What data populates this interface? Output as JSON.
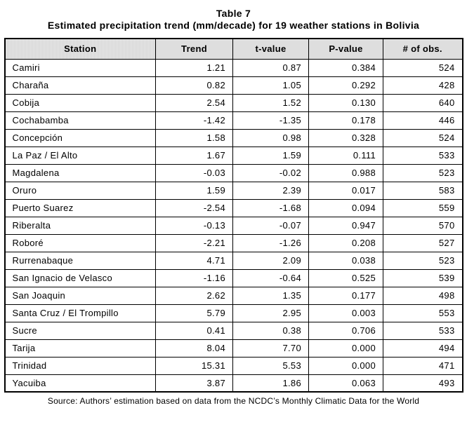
{
  "title": "Table 7",
  "subtitle": "Estimated precipitation trend (mm/decade) for 19 weather stations in Bolivia",
  "table": {
    "columns": [
      "Station",
      "Trend",
      "t-value",
      "P-value",
      "# of obs."
    ],
    "rows": [
      [
        "Camiri",
        "1.21",
        "0.87",
        "0.384",
        "524"
      ],
      [
        "Charaña",
        "0.82",
        "1.05",
        "0.292",
        "428"
      ],
      [
        "Cobija",
        "2.54",
        "1.52",
        "0.130",
        "640"
      ],
      [
        "Cochabamba",
        "-1.42",
        "-1.35",
        "0.178",
        "446"
      ],
      [
        "Concepción",
        "1.58",
        "0.98",
        "0.328",
        "524"
      ],
      [
        "La Paz / El Alto",
        "1.67",
        "1.59",
        "0.111",
        "533"
      ],
      [
        "Magdalena",
        "-0.03",
        "-0.02",
        "0.988",
        "523"
      ],
      [
        "Oruro",
        "1.59",
        "2.39",
        "0.017",
        "583"
      ],
      [
        "Puerto Suarez",
        "-2.54",
        "-1.68",
        "0.094",
        "559"
      ],
      [
        "Riberalta",
        "-0.13",
        "-0.07",
        "0.947",
        "570"
      ],
      [
        "Roboré",
        "-2.21",
        "-1.26",
        "0.208",
        "527"
      ],
      [
        "Rurrenabaque",
        "4.71",
        "2.09",
        "0.038",
        "523"
      ],
      [
        "San Ignacio de Velasco",
        "-1.16",
        "-0.64",
        "0.525",
        "539"
      ],
      [
        "San Joaquin",
        "2.62",
        "1.35",
        "0.177",
        "498"
      ],
      [
        "Santa Cruz / El Trompillo",
        "5.79",
        "2.95",
        "0.003",
        "553"
      ],
      [
        "Sucre",
        "0.41",
        "0.38",
        "0.706",
        "533"
      ],
      [
        "Tarija",
        "8.04",
        "7.70",
        "0.000",
        "494"
      ],
      [
        "Trinidad",
        "15.31",
        "5.53",
        "0.000",
        "471"
      ],
      [
        "Yacuiba",
        "3.87",
        "1.86",
        "0.063",
        "493"
      ]
    ]
  },
  "footer": "Source: Authors’ estimation based on data from the NCDC’s Monthly Climatic Data for the World",
  "colors": {
    "header_bg": "#dedede",
    "border": "#000000",
    "text": "#000000",
    "page_bg": "#ffffff"
  }
}
